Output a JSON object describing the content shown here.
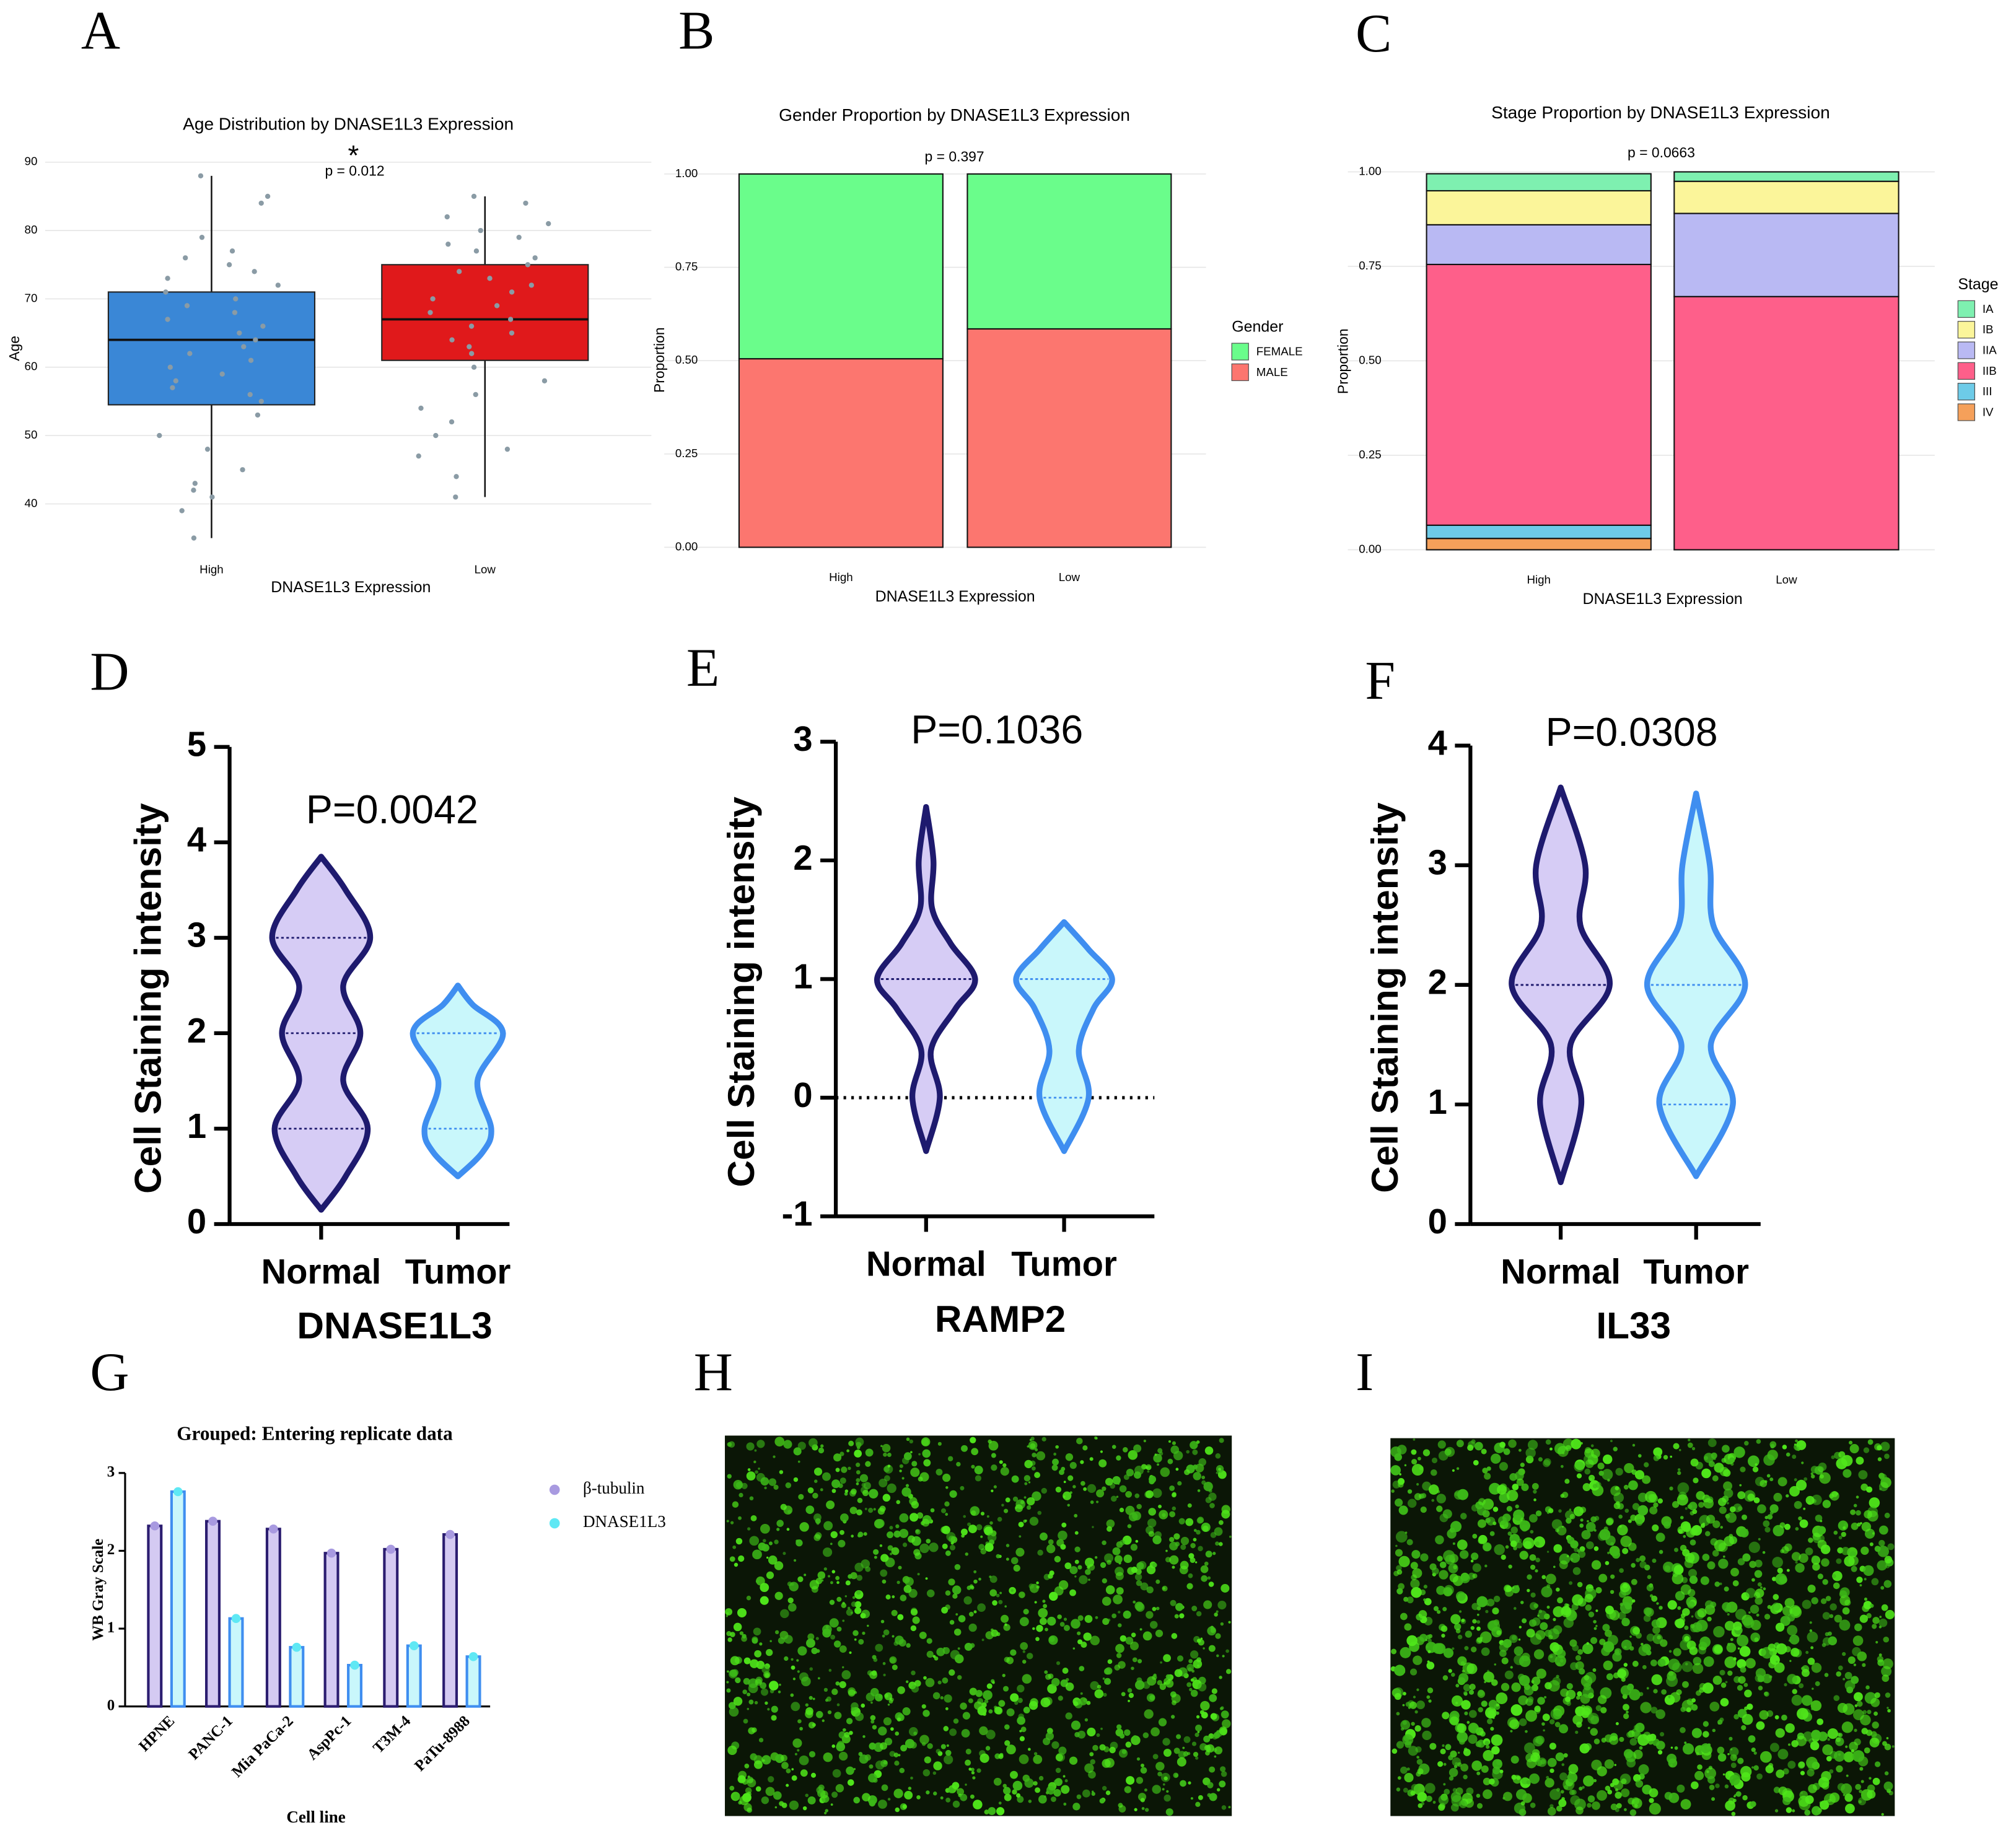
{
  "chart_data": [
    {
      "panel": "A",
      "type": "box",
      "title": "Age Distribution by DNASE1L3 Expression",
      "x_label": "DNASE1L3 Expression",
      "y_label": "Age",
      "annotations": [
        "*",
        "p = 0.012"
      ],
      "categories": [
        "High",
        "Low"
      ],
      "colors": [
        "#3a87d6",
        "#e0191b"
      ],
      "min": [
        35,
        41
      ],
      "q1": [
        54.5,
        61
      ],
      "median": [
        64,
        67
      ],
      "q3": [
        71,
        75
      ],
      "max": [
        88,
        85
      ],
      "points": [
        [
          77,
          76,
          75,
          72,
          70,
          68,
          67,
          66,
          65,
          64,
          63,
          62,
          61,
          60,
          59,
          58,
          57,
          56,
          55,
          53,
          50,
          48,
          45,
          42,
          39,
          35,
          85,
          84,
          88,
          79,
          74,
          73,
          71,
          69,
          43,
          41
        ],
        [
          81,
          80,
          79,
          78,
          77,
          76,
          75,
          74,
          73,
          72,
          71,
          70,
          69,
          68,
          67,
          66,
          65,
          64,
          63,
          62,
          60,
          58,
          56,
          54,
          52,
          50,
          48,
          47,
          44,
          41,
          85,
          82,
          84
        ]
      ],
      "point_color": "#8a9ba5",
      "ylim": [
        33.5,
        92
      ],
      "yticks": [
        40,
        50,
        60,
        70,
        80,
        90
      ],
      "grid": true
    },
    {
      "panel": "B",
      "type": "stacked_bar",
      "title": "Gender Proportion by DNASE1L3 Expression",
      "x_label": "DNASE1L3 Expression",
      "y_label": "Proportion",
      "annotation": "p = 0.397",
      "legend_title": "Gender",
      "categories": [
        "High",
        "Low"
      ],
      "series": [
        {
          "name": "FEMALE",
          "color": "#6afd8b",
          "values": [
            0.495,
            0.415
          ]
        },
        {
          "name": "MALE",
          "color": "#fc766f",
          "values": [
            0.505,
            0.585
          ]
        }
      ],
      "ylim": [
        -0.02,
        1.12
      ],
      "yticks": [
        {
          "value": 0,
          "label": "0.00"
        },
        {
          "value": 0.25,
          "label": "0.25"
        },
        {
          "value": 0.5,
          "label": "0.50"
        },
        {
          "value": 0.75,
          "label": "0.75"
        },
        {
          "value": 1,
          "label": "1.00"
        }
      ],
      "grid": true
    },
    {
      "panel": "C",
      "type": "stacked_bar",
      "title": "Stage Proportion by DNASE1L3 Expression",
      "x_label": "DNASE1L3 Expression",
      "y_label": "Proportion",
      "annotation": "p = 0.0663",
      "legend_title": "Stage",
      "categories": [
        "High",
        "Low"
      ],
      "series": [
        {
          "name": "IA",
          "color": "#7ef0b0",
          "values": [
            0.045,
            0.025
          ]
        },
        {
          "name": "IB",
          "color": "#fbf59a",
          "values": [
            0.09,
            0.085
          ]
        },
        {
          "name": "IIA",
          "color": "#b9b9f3",
          "values": [
            0.105,
            0.22
          ]
        },
        {
          "name": "IIB",
          "color": "#fe5f8a",
          "values": [
            0.69,
            0.67
          ]
        },
        {
          "name": "III",
          "color": "#6dcbe8",
          "values": [
            0.035,
            0
          ]
        },
        {
          "name": "IV",
          "color": "#f5a05a",
          "values": [
            0.03,
            0
          ]
        }
      ],
      "ylim": [
        -0.02,
        1.113
      ],
      "yticks": [
        {
          "value": 0,
          "label": "0.00"
        },
        {
          "value": 0.25,
          "label": "0.25"
        },
        {
          "value": 0.5,
          "label": "0.50"
        },
        {
          "value": 0.75,
          "label": "0.75"
        },
        {
          "value": 1,
          "label": "1.00"
        }
      ],
      "grid": true
    },
    {
      "panel": "D",
      "type": "violin",
      "annotation": "P=0.0042",
      "x_label": "DNASE1L3",
      "y_label": "Cell Staining intensity",
      "categories": [
        "Normal",
        "Tumor"
      ],
      "colors": [
        "#1e1a6e",
        "#3f8ef0"
      ],
      "fills": [
        "#d6ccf5",
        "#c9f7fb"
      ],
      "violins": [
        {
          "density_y": [
            0.15,
            0.5,
            1,
            1.5,
            2,
            2.5,
            3,
            3.5,
            3.85
          ],
          "density": [
            0,
            0.5,
            0.95,
            0.45,
            0.8,
            0.45,
            1,
            0.5,
            0
          ],
          "q1": 1,
          "median": 2,
          "q3": 3
        },
        {
          "density_y": [
            0.5,
            0.75,
            1,
            1.5,
            2,
            2.3,
            2.5
          ],
          "density": [
            0,
            0.5,
            0.68,
            0.4,
            0.92,
            0.3,
            0
          ],
          "q1": 1,
          "median": 2,
          "q3": 2
        }
      ],
      "ylim": [
        0,
        5
      ],
      "yticks": [
        0,
        1,
        2,
        3,
        4,
        5
      ]
    },
    {
      "panel": "E",
      "type": "violin",
      "annotation": "P=0.1036",
      "x_label": "RAMP2",
      "y_label": "Cell Staining intensity",
      "categories": [
        "Normal",
        "Tumor"
      ],
      "colors": [
        "#1e1a6e",
        "#3f8ef0"
      ],
      "fills": [
        "#d6ccf5",
        "#c9f7fb"
      ],
      "violins": [
        {
          "density_y": [
            -0.45,
            0,
            0.4,
            0.75,
            1,
            1.3,
            1.6,
            2,
            2.45
          ],
          "density": [
            0,
            0.28,
            0.1,
            0.6,
            1,
            0.5,
            0.12,
            0.15,
            0
          ],
          "q1": 1,
          "median": 1,
          "q3": 1
        },
        {
          "density_y": [
            -0.45,
            0,
            0.4,
            0.75,
            1,
            1.25,
            1.48
          ],
          "density": [
            0,
            0.5,
            0.3,
            0.6,
            0.98,
            0.5,
            0
          ],
          "q1": 0,
          "median": 1,
          "q3": 1
        }
      ],
      "ylim": [
        -1,
        3
      ],
      "yticks": [
        -1,
        0,
        1,
        2,
        3
      ],
      "zero_line": true
    },
    {
      "panel": "F",
      "type": "violin",
      "annotation": "P=0.0308",
      "x_label": "IL33",
      "y_label": "Cell Staining intensity",
      "categories": [
        "Normal",
        "Tumor"
      ],
      "colors": [
        "#1e1a6e",
        "#3f8ef0"
      ],
      "fills": [
        "#d6ccf5",
        "#c9f7fb"
      ],
      "violins": [
        {
          "density_y": [
            0.35,
            1,
            1.5,
            2,
            2.5,
            3,
            3.65
          ],
          "density": [
            0,
            0.42,
            0.2,
            1,
            0.4,
            0.5,
            0
          ],
          "q1": 2,
          "median": 2,
          "q3": 2
        },
        {
          "density_y": [
            0.4,
            1,
            1.5,
            2,
            2.5,
            3,
            3.6
          ],
          "density": [
            0,
            0.75,
            0.3,
            1,
            0.35,
            0.28,
            0
          ],
          "q1": 1,
          "median": 2,
          "q3": 2
        }
      ],
      "ylim": [
        0,
        4
      ],
      "yticks": [
        0,
        1,
        2,
        3,
        4
      ]
    },
    {
      "panel": "G",
      "type": "grouped_bar",
      "title": "Grouped: Entering replicate data",
      "x_label": "Cell line",
      "y_label": "WB Gray Scale",
      "categories": [
        "HPNE",
        "PANC-1",
        "Mia PaCa-2",
        "AspPc-1",
        "T3M-4",
        "PaTu-8988"
      ],
      "series": [
        {
          "name": "β-tubulin",
          "color": "#2b1d70",
          "fill": "#d4caf2",
          "dot_color": "#a89ae0",
          "values": [
            2.32,
            2.38,
            2.28,
            1.97,
            2.02,
            2.21
          ]
        },
        {
          "name": "DNASE1L3",
          "color": "#3f8ef0",
          "fill": "#c9f7fb",
          "dot_color": "#5fe8f4",
          "values": [
            2.76,
            1.13,
            0.76,
            0.53,
            0.78,
            0.64
          ]
        }
      ],
      "ylim": [
        0,
        3
      ],
      "yticks": [
        0,
        1,
        2,
        3
      ]
    }
  ],
  "images": [
    {
      "panel": "H"
    },
    {
      "panel": "I"
    }
  ]
}
